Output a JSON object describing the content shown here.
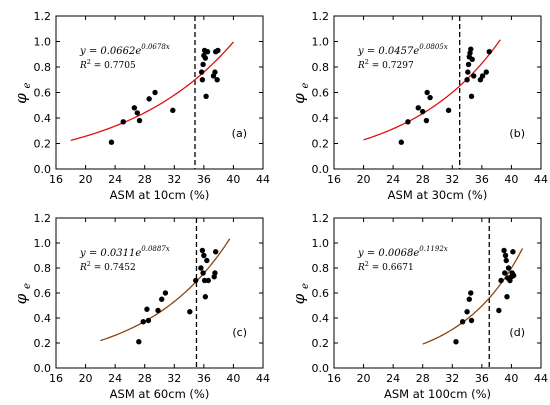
{
  "chart_data": [
    {
      "type": "scatter",
      "panel_label": "(a)",
      "xlabel": "ASM at 10cm (%)",
      "ylabel_main": "φ",
      "ylabel_sub": "e",
      "xlim": [
        16,
        44
      ],
      "ylim": [
        0,
        1.2
      ],
      "xticks": [
        "16",
        "20",
        "24",
        "28",
        "32",
        "36",
        "40",
        "44"
      ],
      "yticks": [
        "0.0",
        "0.2",
        "0.4",
        "0.6",
        "0.8",
        "1.0",
        "1.2"
      ],
      "vline_x": 34.8,
      "fit": {
        "a": 0.0662,
        "b": 0.0678,
        "x_range": [
          18,
          40
        ],
        "color": "#dd1111"
      },
      "equation": {
        "prefix": "y = 0.0662e",
        "exponent": "0.0678x",
        "r2_label": "R",
        "r2_sup": "2",
        "r2_value": " = 0.7705"
      },
      "points": [
        [
          23.5,
          0.21
        ],
        [
          25.1,
          0.37
        ],
        [
          26.6,
          0.48
        ],
        [
          27.0,
          0.44
        ],
        [
          27.3,
          0.38
        ],
        [
          28.6,
          0.55
        ],
        [
          29.4,
          0.6
        ],
        [
          31.8,
          0.46
        ],
        [
          35.8,
          0.7
        ],
        [
          35.7,
          0.76
        ],
        [
          35.9,
          0.82
        ],
        [
          36.0,
          0.89
        ],
        [
          36.1,
          0.93
        ],
        [
          36.2,
          0.87
        ],
        [
          36.3,
          0.57
        ],
        [
          36.5,
          0.92
        ],
        [
          37.3,
          0.73
        ],
        [
          37.5,
          0.76
        ],
        [
          37.6,
          0.92
        ],
        [
          37.8,
          0.7
        ],
        [
          37.9,
          0.93
        ]
      ]
    },
    {
      "type": "scatter",
      "panel_label": "(b)",
      "xlabel": "ASM at 30cm (%)",
      "ylabel_main": "φ",
      "ylabel_sub": "e",
      "xlim": [
        16,
        44
      ],
      "ylim": [
        0,
        1.2
      ],
      "xticks": [
        "16",
        "20",
        "24",
        "28",
        "32",
        "36",
        "40",
        "44"
      ],
      "yticks": [
        "0.0",
        "0.2",
        "0.4",
        "0.6",
        "0.8",
        "1.0",
        "1.2"
      ],
      "vline_x": 33.0,
      "fit": {
        "a": 0.0457,
        "b": 0.0805,
        "x_range": [
          20,
          38.5
        ],
        "color": "#dd1111"
      },
      "equation": {
        "prefix": "y = 0.0457e",
        "exponent": "0.0805x",
        "r2_label": "R",
        "r2_sup": "2",
        "r2_value": " = 0.7297"
      },
      "points": [
        [
          25.1,
          0.21
        ],
        [
          26.0,
          0.37
        ],
        [
          27.4,
          0.48
        ],
        [
          28.0,
          0.45
        ],
        [
          28.5,
          0.38
        ],
        [
          28.6,
          0.6
        ],
        [
          29.0,
          0.56
        ],
        [
          31.5,
          0.46
        ],
        [
          34.0,
          0.7
        ],
        [
          34.1,
          0.76
        ],
        [
          34.2,
          0.82
        ],
        [
          34.3,
          0.88
        ],
        [
          34.4,
          0.91
        ],
        [
          34.5,
          0.94
        ],
        [
          34.6,
          0.57
        ],
        [
          34.7,
          0.86
        ],
        [
          34.9,
          0.73
        ],
        [
          35.8,
          0.7
        ],
        [
          36.1,
          0.73
        ],
        [
          36.6,
          0.76
        ],
        [
          37.0,
          0.92
        ]
      ]
    },
    {
      "type": "scatter",
      "panel_label": "(c)",
      "xlabel": "ASM at 60cm (%)",
      "ylabel_main": "φ",
      "ylabel_sub": "e",
      "xlim": [
        16,
        44
      ],
      "ylim": [
        0,
        1.2
      ],
      "xticks": [
        "16",
        "20",
        "24",
        "28",
        "32",
        "36",
        "40",
        "44"
      ],
      "yticks": [
        "0.0",
        "0.2",
        "0.4",
        "0.6",
        "0.8",
        "1.0",
        "1.2"
      ],
      "vline_x": 35.0,
      "fit": {
        "a": 0.0311,
        "b": 0.0887,
        "x_range": [
          22,
          39.5
        ],
        "color": "#8b4513"
      },
      "equation": {
        "prefix": "y = 0.0311e",
        "exponent": "0.0887x",
        "r2_label": "R",
        "r2_sup": "2",
        "r2_value": " = 0.7452"
      },
      "points": [
        [
          27.2,
          0.21
        ],
        [
          27.8,
          0.37
        ],
        [
          28.3,
          0.47
        ],
        [
          28.5,
          0.38
        ],
        [
          29.8,
          0.46
        ],
        [
          30.3,
          0.55
        ],
        [
          30.8,
          0.6
        ],
        [
          34.1,
          0.45
        ],
        [
          34.9,
          0.7
        ],
        [
          35.6,
          0.8
        ],
        [
          35.8,
          0.94
        ],
        [
          35.9,
          0.76
        ],
        [
          36.0,
          0.9
        ],
        [
          36.1,
          0.7
        ],
        [
          36.2,
          0.57
        ],
        [
          36.4,
          0.86
        ],
        [
          36.6,
          0.7
        ],
        [
          37.4,
          0.73
        ],
        [
          37.5,
          0.76
        ],
        [
          37.6,
          0.93
        ]
      ]
    },
    {
      "type": "scatter",
      "panel_label": "(d)",
      "xlabel": "ASM at 100cm (%)",
      "ylabel_main": "φ",
      "ylabel_sub": "e",
      "xlim": [
        16,
        44
      ],
      "ylim": [
        0,
        1.2
      ],
      "xticks": [
        "16",
        "20",
        "24",
        "28",
        "32",
        "36",
        "40",
        "44"
      ],
      "yticks": [
        "0.0",
        "0.2",
        "0.4",
        "0.6",
        "0.8",
        "1.0",
        "1.2"
      ],
      "vline_x": 37.0,
      "fit": {
        "a": 0.0068,
        "b": 0.1192,
        "x_range": [
          28,
          41.5
        ],
        "color": "#8b4513"
      },
      "equation": {
        "prefix": "y = 0.0068e",
        "exponent": "0.1192x",
        "r2_label": "R",
        "r2_sup": "2",
        "r2_value": " = 0.6671"
      },
      "points": [
        [
          32.5,
          0.21
        ],
        [
          33.4,
          0.37
        ],
        [
          34.0,
          0.45
        ],
        [
          34.3,
          0.55
        ],
        [
          34.5,
          0.6
        ],
        [
          34.6,
          0.38
        ],
        [
          38.3,
          0.46
        ],
        [
          38.6,
          0.7
        ],
        [
          39.0,
          0.94
        ],
        [
          39.1,
          0.76
        ],
        [
          39.2,
          0.9
        ],
        [
          39.3,
          0.86
        ],
        [
          39.4,
          0.57
        ],
        [
          39.5,
          0.72
        ],
        [
          39.6,
          0.8
        ],
        [
          39.8,
          0.7
        ],
        [
          40.0,
          0.73
        ],
        [
          40.1,
          0.76
        ],
        [
          40.2,
          0.93
        ],
        [
          40.3,
          0.74
        ]
      ]
    }
  ]
}
